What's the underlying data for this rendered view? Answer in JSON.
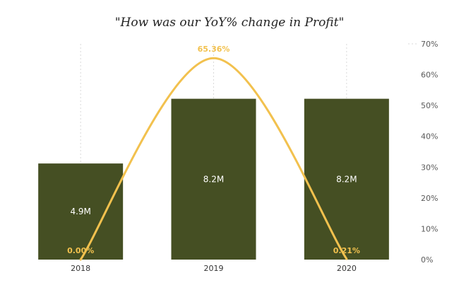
{
  "title": "\"How was our YoY% change in Profit\"",
  "colors": {
    "bar": "#454F23",
    "line": "#F2C14E",
    "line_label": "#F2C14E",
    "grid": "#d9d9d9",
    "axis_text": "#5a5a5a"
  },
  "chart_data": {
    "type": "bar",
    "categories": [
      "2018",
      "2019",
      "2020"
    ],
    "series": [
      {
        "type": "bar",
        "values": [
          4.9,
          8.2,
          8.2
        ],
        "value_labels": [
          "4.9M",
          "8.2M",
          "8.2M"
        ],
        "unit": "M"
      },
      {
        "type": "line",
        "values": [
          0.0,
          65.36,
          0.21
        ],
        "value_labels": [
          "0.00%",
          "65.36%",
          "0.21%"
        ],
        "axis": "right",
        "unit": "%"
      }
    ],
    "title": "\"How was our YoY% change in Profit\"",
    "xlabel": "",
    "ylabel": "",
    "left_ylim": [
      0,
      11.0
    ],
    "right_ylim": [
      0,
      70
    ],
    "right_ticks": [
      "0%",
      "10%",
      "20%",
      "30%",
      "40%",
      "50%",
      "60%",
      "70%"
    ],
    "grid": "vertical-dotted",
    "legend": "none"
  }
}
